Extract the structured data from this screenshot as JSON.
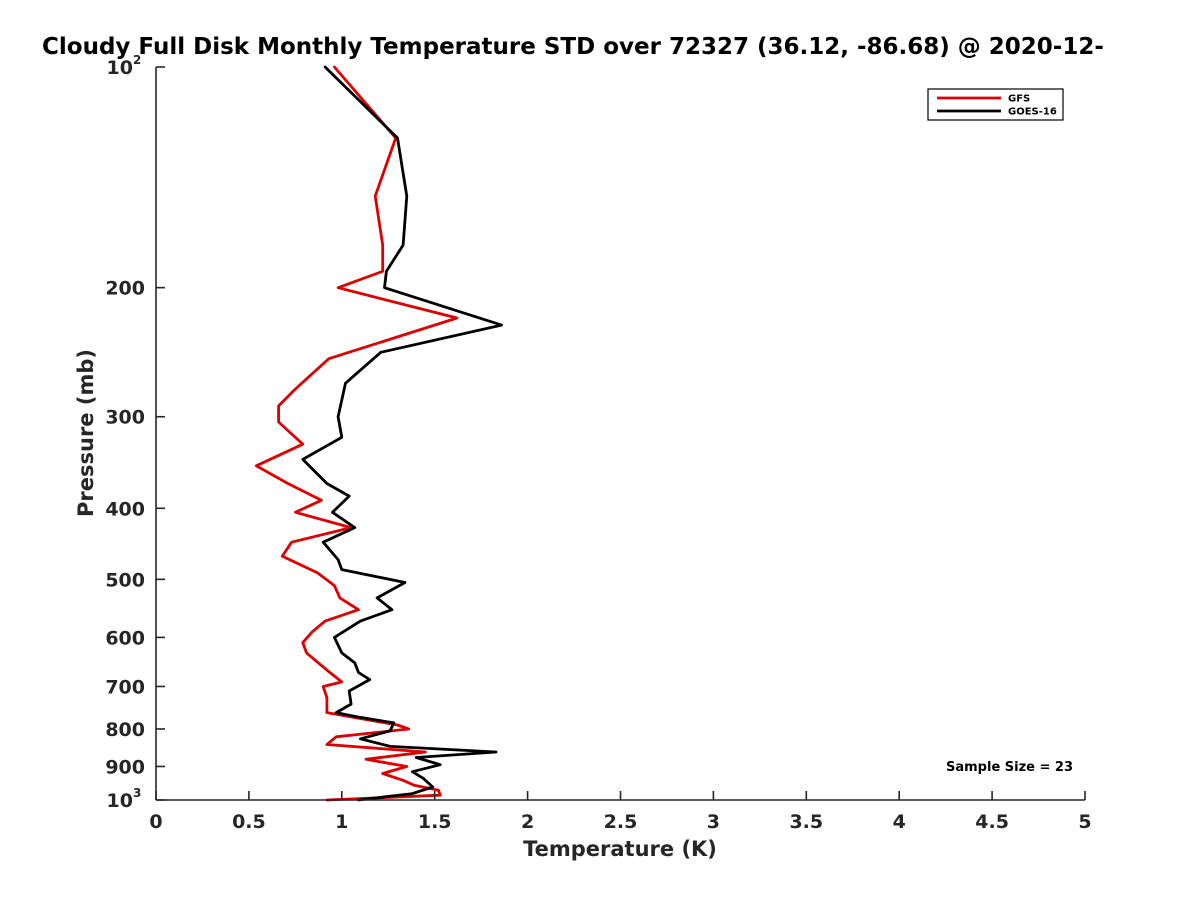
{
  "chart_data": {
    "type": "line",
    "title": "Cloudy Full Disk Monthly Temperature STD over 72327 (36.12, -86.68) @ 2020-12-",
    "xlabel": "Temperature (K)",
    "ylabel": "Pressure (mb)",
    "xlim": [
      0,
      5
    ],
    "ylim": [
      100,
      1000
    ],
    "y_scale": "log",
    "y_direction": "reversed",
    "grid": false,
    "legend_position": "top-right",
    "x_ticks": [
      0,
      0.5,
      1,
      1.5,
      2,
      2.5,
      3,
      3.5,
      4,
      4.5,
      5
    ],
    "x_tick_labels": [
      "0",
      "0.5",
      "1",
      "1.5",
      "2",
      "2.5",
      "3",
      "3.5",
      "4",
      "4.5",
      "5"
    ],
    "y_ticks": [
      {
        "value": 100,
        "base": "10",
        "exp": "2"
      },
      {
        "value": 200,
        "label": "200"
      },
      {
        "value": 300,
        "label": "300"
      },
      {
        "value": 400,
        "label": "400"
      },
      {
        "value": 500,
        "label": "500"
      },
      {
        "value": 600,
        "label": "600"
      },
      {
        "value": 700,
        "label": "700"
      },
      {
        "value": 800,
        "label": "800"
      },
      {
        "value": 900,
        "label": "900"
      },
      {
        "value": 1000,
        "base": "10",
        "exp": "3"
      }
    ],
    "annotation": "Sample Size = 23",
    "series": [
      {
        "name": "GFS",
        "color": "#dd0000",
        "points": [
          [
            0.96,
            100
          ],
          [
            1.29,
            125
          ],
          [
            1.18,
            150
          ],
          [
            1.22,
            175
          ],
          [
            1.22,
            190
          ],
          [
            0.98,
            200
          ],
          [
            1.62,
            220
          ],
          [
            0.93,
            250
          ],
          [
            0.75,
            275
          ],
          [
            0.66,
            290
          ],
          [
            0.66,
            305
          ],
          [
            0.79,
            327
          ],
          [
            0.54,
            350
          ],
          [
            0.71,
            370
          ],
          [
            0.89,
            390
          ],
          [
            0.75,
            405
          ],
          [
            1.05,
            425
          ],
          [
            0.73,
            445
          ],
          [
            0.68,
            465
          ],
          [
            0.87,
            490
          ],
          [
            0.96,
            510
          ],
          [
            0.99,
            530
          ],
          [
            1.09,
            550
          ],
          [
            0.91,
            570
          ],
          [
            0.84,
            590
          ],
          [
            0.79,
            610
          ],
          [
            0.81,
            630
          ],
          [
            0.92,
            665
          ],
          [
            1.0,
            690
          ],
          [
            0.9,
            700
          ],
          [
            0.92,
            725
          ],
          [
            0.92,
            760
          ],
          [
            1.3,
            790
          ],
          [
            1.36,
            800
          ],
          [
            0.97,
            820
          ],
          [
            0.92,
            840
          ],
          [
            1.45,
            860
          ],
          [
            1.13,
            880
          ],
          [
            1.35,
            900
          ],
          [
            1.22,
            920
          ],
          [
            1.33,
            940
          ],
          [
            1.39,
            955
          ],
          [
            1.52,
            970
          ],
          [
            1.53,
            985
          ],
          [
            0.92,
            1000
          ]
        ]
      },
      {
        "name": "GOES-16",
        "color": "#000000",
        "points": [
          [
            0.91,
            100
          ],
          [
            1.3,
            125
          ],
          [
            1.35,
            150
          ],
          [
            1.33,
            175
          ],
          [
            1.24,
            190
          ],
          [
            1.23,
            200
          ],
          [
            1.86,
            225
          ],
          [
            1.21,
            245
          ],
          [
            1.02,
            270
          ],
          [
            0.98,
            300
          ],
          [
            1.0,
            320
          ],
          [
            0.79,
            343
          ],
          [
            0.92,
            370
          ],
          [
            1.04,
            385
          ],
          [
            0.95,
            405
          ],
          [
            1.07,
            425
          ],
          [
            0.9,
            445
          ],
          [
            0.98,
            470
          ],
          [
            1.0,
            485
          ],
          [
            1.34,
            505
          ],
          [
            1.19,
            530
          ],
          [
            1.27,
            550
          ],
          [
            1.1,
            570
          ],
          [
            0.96,
            600
          ],
          [
            1.0,
            630
          ],
          [
            1.07,
            650
          ],
          [
            1.09,
            670
          ],
          [
            1.15,
            685
          ],
          [
            1.04,
            710
          ],
          [
            1.05,
            740
          ],
          [
            0.97,
            760
          ],
          [
            1.08,
            770
          ],
          [
            1.28,
            785
          ],
          [
            1.26,
            805
          ],
          [
            1.1,
            825
          ],
          [
            1.26,
            845
          ],
          [
            1.83,
            860
          ],
          [
            1.4,
            875
          ],
          [
            1.53,
            895
          ],
          [
            1.38,
            915
          ],
          [
            1.44,
            935
          ],
          [
            1.49,
            960
          ],
          [
            1.38,
            980
          ],
          [
            1.09,
            1000
          ]
        ]
      }
    ]
  }
}
